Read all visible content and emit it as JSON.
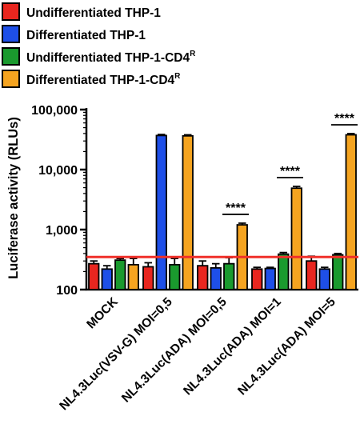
{
  "chart_data": {
    "type": "bar",
    "ylabel": "Luciferase activity (RLUs)",
    "yscale": "log",
    "ylim": [
      100,
      100000
    ],
    "yticks": [
      {
        "value": 100,
        "label": "100"
      },
      {
        "value": 1000,
        "label": "1,000"
      },
      {
        "value": 10000,
        "label": "10,000"
      },
      {
        "value": 100000,
        "label": "100,000"
      }
    ],
    "categories": [
      "MOCK",
      "NL4.3Luc(VSV-G) MOI=0,5",
      "NL4.3Luc(ADA) MOI=0,5",
      "NL4.3Luc(ADA) MOI=1",
      "NL4.3Luc(ADA) MOI=5"
    ],
    "series": [
      {
        "name": "Undifferentiated THP-1",
        "sup": "",
        "color": "#e8261f",
        "values": [
          270,
          240,
          250,
          220,
          300
        ],
        "errors": [
          30,
          40,
          50,
          15,
          60
        ]
      },
      {
        "name": "Differentiated THP-1",
        "sup": "",
        "color": "#1e4fe8",
        "values": [
          220,
          37000,
          230,
          225,
          220
        ],
        "errors": [
          30,
          1500,
          40,
          10,
          15
        ]
      },
      {
        "name": "Undifferentiated THP-1-CD4",
        "sup": "R",
        "color": "#1a9a2e",
        "values": [
          310,
          260,
          270,
          390,
          380
        ],
        "errors": [
          20,
          70,
          70,
          25,
          20
        ]
      },
      {
        "name": "Differentiated THP-1-CD4",
        "sup": "R",
        "color": "#f5a420",
        "values": [
          260,
          36500,
          1200,
          4900,
          38000
        ],
        "errors": [
          70,
          1500,
          80,
          350,
          1800
        ]
      }
    ],
    "reference_line": {
      "value": 350,
      "color": "#f0302a"
    },
    "annotations": [
      {
        "category": 2,
        "from_series": 2,
        "to_series": 3,
        "text": "****"
      },
      {
        "category": 3,
        "from_series": 2,
        "to_series": 3,
        "text": "****"
      },
      {
        "category": 4,
        "from_series": 2,
        "to_series": 3,
        "text": "****"
      }
    ],
    "legend_position": "top-left",
    "grid": false
  }
}
